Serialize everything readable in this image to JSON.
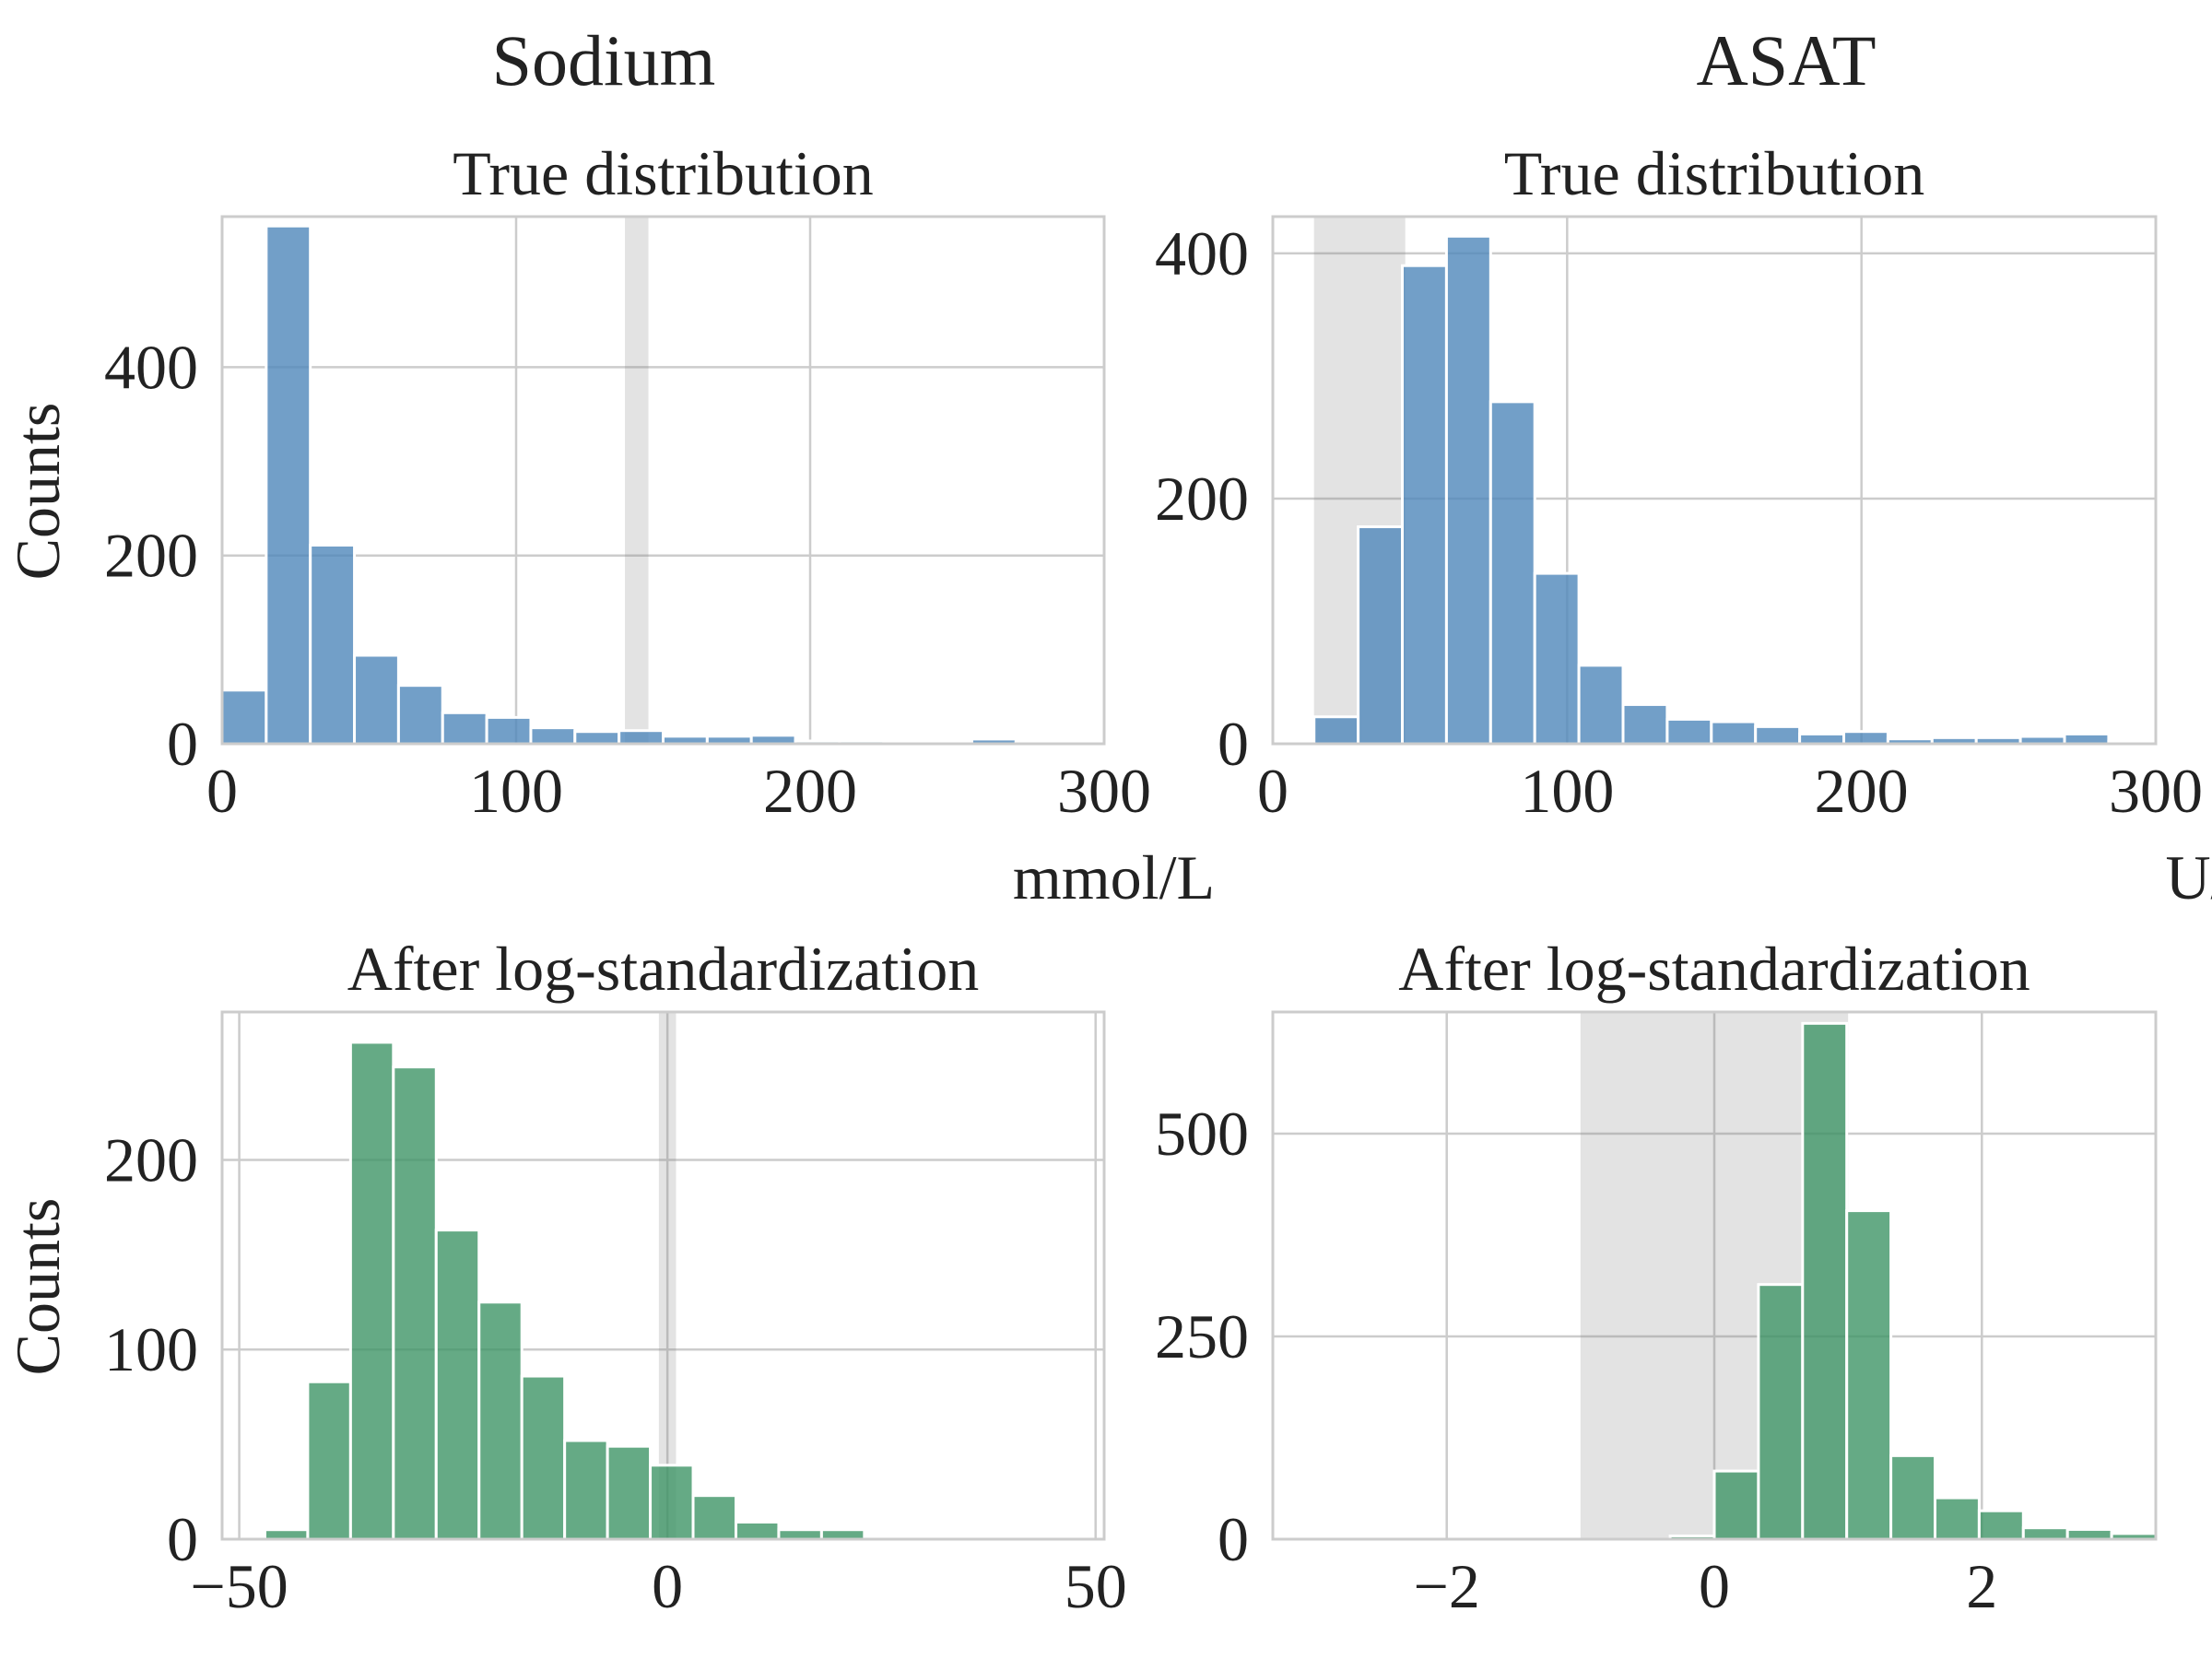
{
  "columns": [
    {
      "title": "Sodium"
    },
    {
      "title": "ASAT"
    }
  ],
  "chart_data": [
    {
      "type": "bar",
      "subplot": "sodium-true",
      "title": "True distribution",
      "xlabel": "mmol/L",
      "ylabel": "Counts",
      "xlim": [
        0,
        300
      ],
      "ylim": [
        0,
        560
      ],
      "xticks": [
        0,
        100,
        200,
        300
      ],
      "yticks": [
        0,
        200,
        400
      ],
      "normal_range": [
        137,
        145
      ],
      "color": "#4f87ba",
      "bin_edges": [
        0,
        15,
        30,
        45,
        60,
        75,
        90,
        105,
        120,
        135,
        150,
        165,
        180,
        195,
        210,
        225,
        240,
        255,
        270,
        285,
        300
      ],
      "values": [
        57,
        550,
        211,
        94,
        62,
        33,
        28,
        17,
        13,
        14,
        8,
        8,
        9,
        3,
        3,
        2,
        2,
        5,
        1,
        1
      ]
    },
    {
      "type": "bar",
      "subplot": "asat-true",
      "title": "True distribution",
      "xlabel": "U/L",
      "ylabel": "",
      "xlim": [
        0,
        300
      ],
      "ylim": [
        0,
        430
      ],
      "xticks": [
        0,
        100,
        200,
        300
      ],
      "yticks": [
        0,
        200,
        400
      ],
      "normal_range": [
        14,
        45
      ],
      "color": "#4f87ba",
      "bin_edges": [
        14,
        29,
        44,
        59,
        74,
        89,
        104,
        119,
        134,
        149,
        164,
        179,
        194,
        209,
        224,
        239,
        254,
        269,
        284,
        299
      ],
      "values": [
        22,
        177,
        390,
        414,
        279,
        139,
        64,
        32,
        20,
        18,
        14,
        8,
        10,
        4,
        5,
        5,
        6,
        8,
        2
      ]
    },
    {
      "type": "bar",
      "subplot": "sodium-log",
      "title": "After log-standardization",
      "xlabel": "",
      "ylabel": "Counts",
      "xlim": [
        -52,
        51
      ],
      "ylim": [
        0,
        278
      ],
      "xticks": [
        -50,
        0,
        50
      ],
      "tick_labels": [
        "−50",
        "0",
        "50"
      ],
      "yticks": [
        0,
        100,
        200
      ],
      "normal_range": [
        -1,
        1
      ],
      "color": "#3e9566",
      "bin_edges": [
        -47,
        -42,
        -37,
        -32,
        -27,
        -22,
        -17,
        -12,
        -7,
        -2,
        3,
        8,
        13,
        18,
        23,
        28
      ],
      "values": [
        5,
        83,
        262,
        249,
        163,
        125,
        86,
        52,
        49,
        39,
        23,
        9,
        5,
        5,
        0
      ]
    },
    {
      "type": "bar",
      "subplot": "asat-log",
      "title": "After log-standardization",
      "xlabel": "",
      "ylabel": "",
      "xlim": [
        -3.3,
        3.3
      ],
      "ylim": [
        0,
        650
      ],
      "xticks": [
        -2,
        0,
        2
      ],
      "tick_labels": [
        "−2",
        "0",
        "2"
      ],
      "yticks": [
        0,
        250,
        500
      ],
      "normal_range": [
        -1,
        1
      ],
      "color": "#3e9566",
      "bin_edges": [
        -0.33,
        0,
        0.33,
        0.66,
        0.99,
        1.32,
        1.65,
        1.98,
        2.31,
        2.64,
        2.97,
        3.3
      ],
      "values": [
        4,
        84,
        314,
        636,
        405,
        103,
        51,
        35,
        14,
        12,
        7
      ]
    }
  ]
}
